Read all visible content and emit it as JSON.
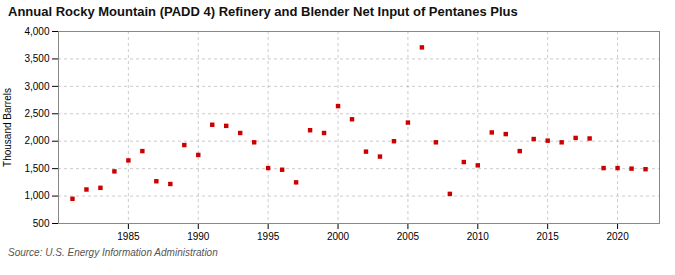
{
  "chart_data": {
    "type": "scatter",
    "title": "Annual Rocky Mountain (PADD 4) Refinery and Blender Net Input of Pentanes Plus",
    "ylabel": "Thousand Barrels",
    "source": "Source: U.S. Energy Information Administration",
    "x": [
      1981,
      1982,
      1983,
      1984,
      1985,
      1986,
      1987,
      1988,
      1989,
      1990,
      1991,
      1992,
      1993,
      1994,
      1995,
      1996,
      1997,
      1998,
      1999,
      2000,
      2001,
      2002,
      2003,
      2004,
      2005,
      2006,
      2007,
      2008,
      2009,
      2010,
      2011,
      2012,
      2013,
      2014,
      2015,
      2016,
      2017,
      2018,
      2019,
      2020,
      2021,
      2022
    ],
    "values": [
      950,
      1120,
      1150,
      1450,
      1650,
      1820,
      1270,
      1220,
      1930,
      1750,
      2300,
      2280,
      2150,
      1980,
      1510,
      1480,
      1250,
      2200,
      2150,
      2640,
      2400,
      1810,
      1720,
      2000,
      2340,
      3710,
      1980,
      1040,
      1620,
      1560,
      2160,
      2130,
      1820,
      2040,
      2010,
      1980,
      2060,
      2050,
      1510,
      1510,
      1500,
      1490
    ],
    "color": "#cc0000",
    "marker": "square",
    "xlim": [
      1980,
      2023
    ],
    "xticks": [
      1985,
      1990,
      1995,
      2000,
      2005,
      2010,
      2015,
      2020
    ],
    "ylim": [
      500,
      4000
    ],
    "yticks": [
      500,
      {
        "value": 1000,
        "label": "1,000"
      },
      {
        "value": 1500,
        "label": "1,500"
      },
      {
        "value": 2000,
        "label": "2,000"
      },
      {
        "value": 2500,
        "label": "2,500"
      },
      {
        "value": 3000,
        "label": "3,000"
      },
      {
        "value": 3500,
        "label": "3,500"
      },
      {
        "value": 4000,
        "label": "4,000"
      }
    ],
    "grid": true
  }
}
